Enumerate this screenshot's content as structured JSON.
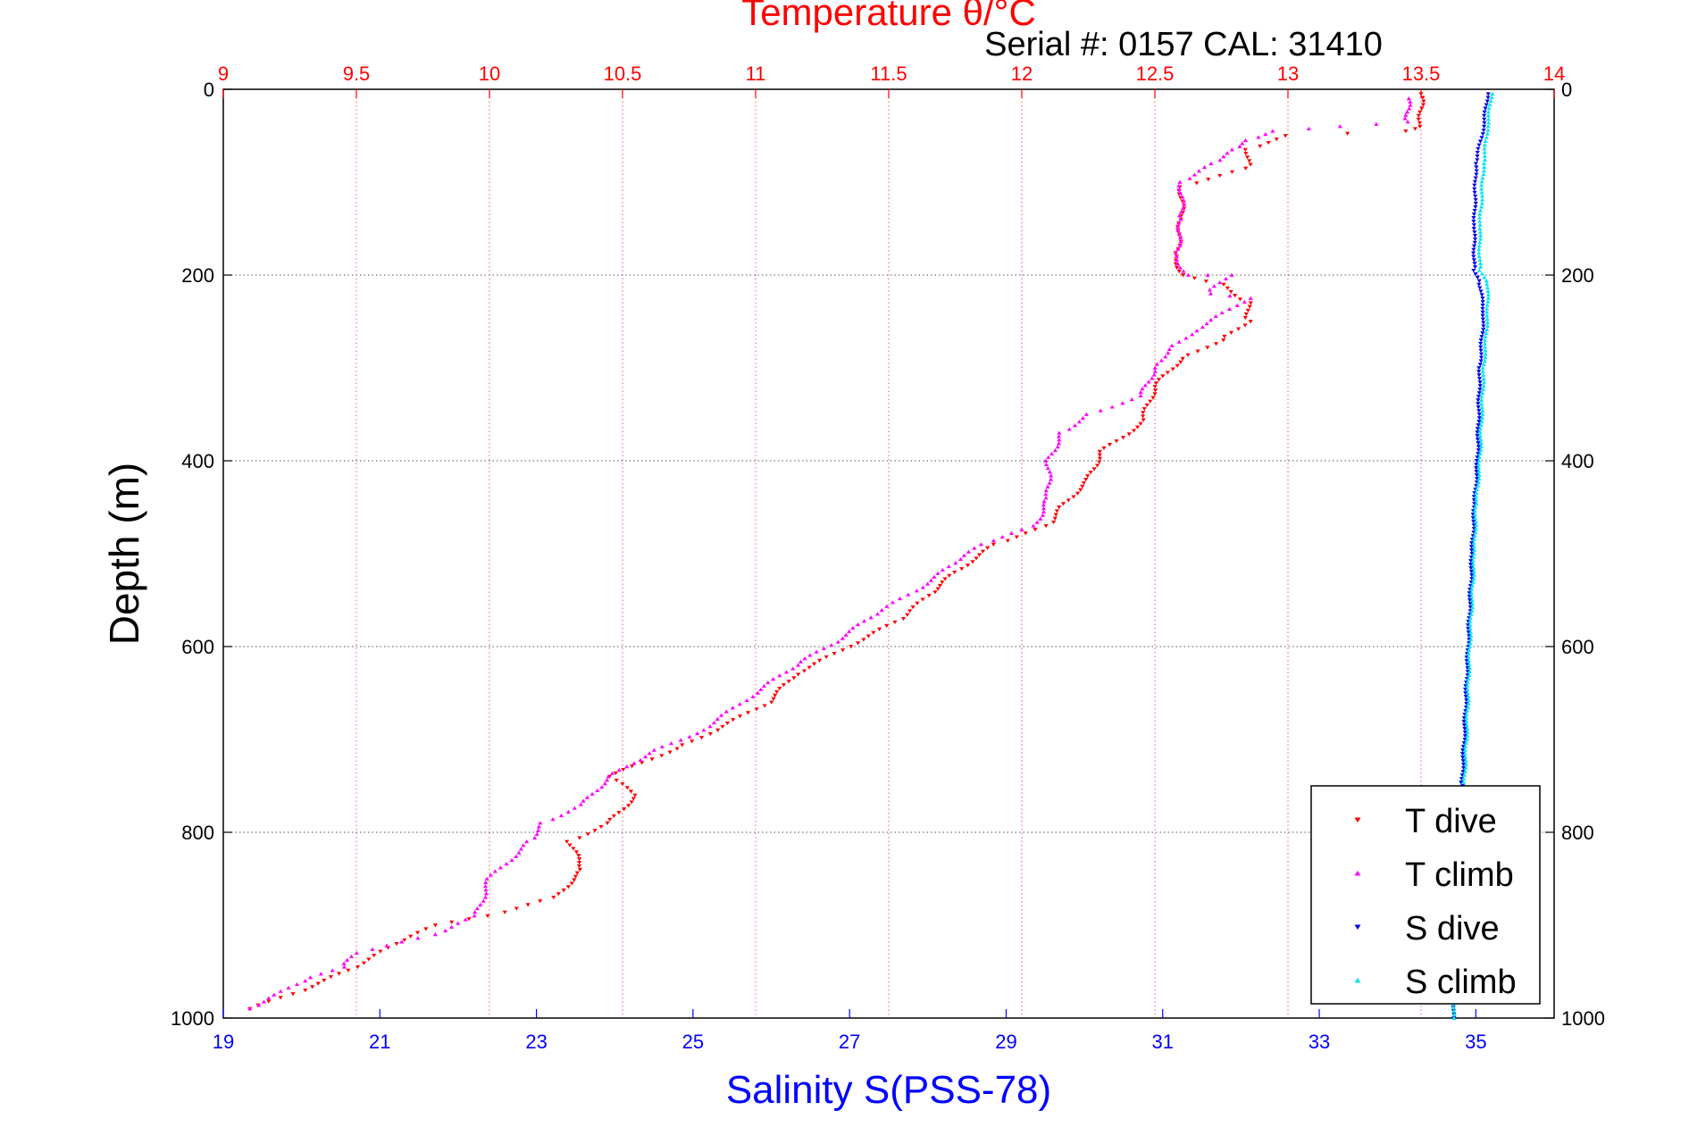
{
  "chart_data": {
    "type": "scatter",
    "title": "Temperature θ/°C",
    "subtitle": "Serial #: 0157  CAL: 31410",
    "xlabel": "Salinity S(PSS-78)",
    "ylabel": "Depth (m)",
    "grid": true,
    "legend_position": "bottom-right",
    "axes": {
      "temperature_top": {
        "lim": [
          9,
          14
        ],
        "ticks": [
          9,
          9.5,
          10,
          10.5,
          11,
          11.5,
          12,
          12.5,
          13,
          13.5,
          14
        ],
        "color": "#ff0000"
      },
      "salinity_bottom": {
        "lim": [
          19,
          36
        ],
        "ticks": [
          19,
          21,
          23,
          25,
          27,
          29,
          31,
          33,
          35
        ],
        "color": "#0000ff"
      },
      "depth": {
        "lim": [
          0,
          1000
        ],
        "reversed": true,
        "ticks": [
          0,
          200,
          400,
          600,
          800,
          1000
        ]
      }
    },
    "series": [
      {
        "name": "T dive",
        "axis": "temperature_top",
        "color": "#ff0000",
        "marker": "triangle-down",
        "points": [
          [
            13.5,
            5
          ],
          [
            13.5,
            40
          ],
          [
            13.45,
            45
          ],
          [
            13.0,
            50
          ],
          [
            12.85,
            65
          ],
          [
            12.85,
            85
          ],
          [
            12.6,
            105
          ],
          [
            12.6,
            140
          ],
          [
            12.58,
            180
          ],
          [
            12.6,
            200
          ],
          [
            12.75,
            210
          ],
          [
            12.85,
            230
          ],
          [
            12.85,
            250
          ],
          [
            12.75,
            270
          ],
          [
            12.6,
            290
          ],
          [
            12.5,
            320
          ],
          [
            12.45,
            360
          ],
          [
            12.3,
            390
          ],
          [
            12.25,
            420
          ],
          [
            12.15,
            450
          ],
          [
            12.1,
            470
          ],
          [
            11.9,
            490
          ],
          [
            11.75,
            520
          ],
          [
            11.65,
            545
          ],
          [
            11.55,
            570
          ],
          [
            11.35,
            600
          ],
          [
            11.15,
            630
          ],
          [
            11.05,
            660
          ],
          [
            10.85,
            690
          ],
          [
            10.7,
            710
          ],
          [
            10.45,
            740
          ],
          [
            10.55,
            760
          ],
          [
            10.45,
            790
          ],
          [
            10.3,
            810
          ],
          [
            10.35,
            840
          ],
          [
            10.25,
            870
          ],
          [
            10.0,
            890
          ],
          [
            9.8,
            900
          ],
          [
            9.65,
            920
          ],
          [
            9.5,
            945
          ],
          [
            9.3,
            970
          ],
          [
            9.1,
            990
          ]
        ]
      },
      {
        "name": "T climb",
        "axis": "temperature_top",
        "color": "#ff00ff",
        "marker": "triangle-up",
        "points": [
          [
            13.45,
            10
          ],
          [
            13.45,
            35
          ],
          [
            13.2,
            40
          ],
          [
            12.95,
            45
          ],
          [
            12.85,
            55
          ],
          [
            12.8,
            65
          ],
          [
            12.72,
            80
          ],
          [
            12.6,
            100
          ],
          [
            12.6,
            140
          ],
          [
            12.58,
            180
          ],
          [
            12.62,
            200
          ],
          [
            12.78,
            200
          ],
          [
            12.7,
            220
          ],
          [
            12.85,
            225
          ],
          [
            12.65,
            260
          ],
          [
            12.55,
            280
          ],
          [
            12.5,
            300
          ],
          [
            12.45,
            330
          ],
          [
            12.25,
            350
          ],
          [
            12.15,
            370
          ],
          [
            12.1,
            400
          ],
          [
            12.1,
            440
          ],
          [
            12.05,
            470
          ],
          [
            11.85,
            490
          ],
          [
            11.75,
            510
          ],
          [
            11.6,
            540
          ],
          [
            11.45,
            565
          ],
          [
            11.3,
            595
          ],
          [
            11.15,
            620
          ],
          [
            11.0,
            650
          ],
          [
            10.8,
            690
          ],
          [
            10.6,
            715
          ],
          [
            10.45,
            740
          ],
          [
            10.35,
            770
          ],
          [
            10.2,
            790
          ],
          [
            10.15,
            810
          ],
          [
            10.0,
            850
          ],
          [
            9.95,
            890
          ],
          [
            9.8,
            910
          ],
          [
            9.5,
            930
          ],
          [
            9.45,
            945
          ],
          [
            9.3,
            960
          ],
          [
            9.1,
            990
          ]
        ]
      },
      {
        "name": "S dive",
        "axis": "salinity_bottom",
        "color": "#0000ee",
        "marker": "triangle-down",
        "points": [
          [
            35.15,
            5
          ],
          [
            35.1,
            40
          ],
          [
            35.0,
            80
          ],
          [
            34.98,
            150
          ],
          [
            34.98,
            195
          ],
          [
            35.05,
            210
          ],
          [
            35.1,
            240
          ],
          [
            35.05,
            300
          ],
          [
            35.02,
            400
          ],
          [
            34.98,
            450
          ],
          [
            34.95,
            500
          ],
          [
            34.9,
            600
          ],
          [
            34.85,
            700
          ],
          [
            34.82,
            750
          ],
          [
            34.8,
            800
          ],
          [
            34.75,
            900
          ],
          [
            34.72,
            1000
          ]
        ]
      },
      {
        "name": "S climb",
        "axis": "salinity_bottom",
        "color": "#00e5ee",
        "marker": "triangle-up",
        "points": [
          [
            35.2,
            5
          ],
          [
            35.15,
            40
          ],
          [
            35.1,
            80
          ],
          [
            35.05,
            150
          ],
          [
            35.05,
            195
          ],
          [
            35.15,
            210
          ],
          [
            35.15,
            240
          ],
          [
            35.1,
            300
          ],
          [
            35.05,
            400
          ],
          [
            35.0,
            450
          ],
          [
            34.98,
            500
          ],
          [
            34.92,
            600
          ],
          [
            34.88,
            700
          ],
          [
            34.85,
            750
          ],
          [
            34.8,
            800
          ],
          [
            34.75,
            900
          ],
          [
            34.72,
            1000
          ]
        ]
      }
    ]
  }
}
